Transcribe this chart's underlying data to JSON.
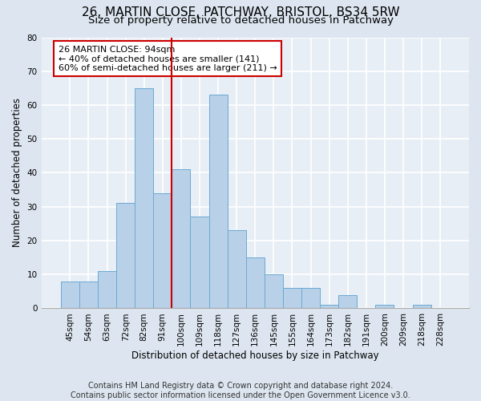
{
  "title": "26, MARTIN CLOSE, PATCHWAY, BRISTOL, BS34 5RW",
  "subtitle": "Size of property relative to detached houses in Patchway",
  "xlabel": "Distribution of detached houses by size in Patchway",
  "ylabel": "Number of detached properties",
  "bin_labels": [
    "45sqm",
    "54sqm",
    "63sqm",
    "72sqm",
    "82sqm",
    "91sqm",
    "100sqm",
    "109sqm",
    "118sqm",
    "127sqm",
    "136sqm",
    "145sqm",
    "155sqm",
    "164sqm",
    "173sqm",
    "182sqm",
    "191sqm",
    "200sqm",
    "209sqm",
    "218sqm",
    "228sqm"
  ],
  "bar_heights": [
    8,
    8,
    11,
    31,
    65,
    34,
    41,
    27,
    63,
    23,
    15,
    10,
    6,
    6,
    1,
    4,
    0,
    1,
    0,
    1,
    0
  ],
  "bar_color": "#b8d0e8",
  "bar_edge_color": "#6aaad4",
  "vline_x": 5.5,
  "vline_color": "#cc0000",
  "annotation_text": "26 MARTIN CLOSE: 94sqm\n← 40% of detached houses are smaller (141)\n60% of semi-detached houses are larger (211) →",
  "annotation_box_color": "#ffffff",
  "annotation_box_edge_color": "#cc0000",
  "ylim": [
    0,
    80
  ],
  "yticks": [
    0,
    10,
    20,
    30,
    40,
    50,
    60,
    70,
    80
  ],
  "footer_text": "Contains HM Land Registry data © Crown copyright and database right 2024.\nContains public sector information licensed under the Open Government Licence v3.0.",
  "background_color": "#dde6f0",
  "plot_bg_color": "#e8eef5",
  "grid_color": "#ffffff",
  "title_fontsize": 11,
  "subtitle_fontsize": 9.5,
  "axis_label_fontsize": 8.5,
  "tick_fontsize": 7.5,
  "footer_fontsize": 7,
  "annotation_fontsize": 8
}
